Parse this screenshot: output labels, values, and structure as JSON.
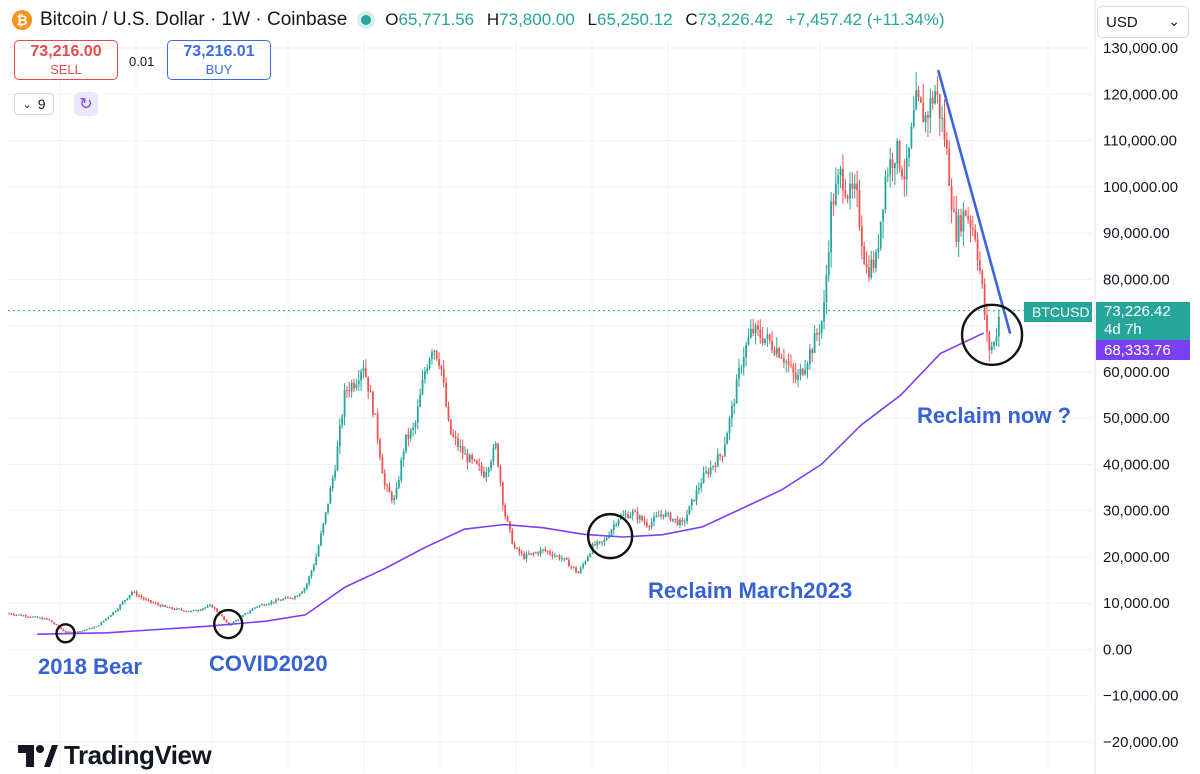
{
  "header": {
    "coin_icon": "bitcoin-icon",
    "coin_glyph": "₿",
    "title": "Bitcoin / U.S. Dollar · 1W · Coinbase",
    "ohlc": {
      "o_label": "O",
      "o_value": "65,771.56",
      "h_label": "H",
      "h_value": "73,800.00",
      "l_label": "L",
      "l_value": "65,250.12",
      "c_label": "C",
      "c_value": "73,226.42",
      "change": "+7,457.42 (+11.34%)"
    }
  },
  "trade": {
    "sell_price": "73,216.00",
    "sell_label": "SELL",
    "spread": "0.01",
    "buy_price": "73,216.01",
    "buy_label": "BUY"
  },
  "toolbar": {
    "interval_value": "9",
    "interval_icon": "chevron-down-icon",
    "refresh_icon": "refresh-icon"
  },
  "currency": {
    "value": "USD",
    "icon": "chevron-down-icon"
  },
  "price_tags": {
    "symbol": "BTCUSD",
    "last_price": "73,226.42",
    "countdown": "4d 7h",
    "ma_value": "68,333.76"
  },
  "colors": {
    "up": "#26a69a",
    "down": "#ef5350",
    "ma": "#7b3ff2",
    "trend": "#3d63dd",
    "annotation": "#3662d6"
  },
  "annotations": [
    {
      "text": "2018 Bear"
    },
    {
      "text": "COVID2020"
    },
    {
      "text": "Reclaim March2023"
    },
    {
      "text": "Reclaim now ?"
    }
  ],
  "branding": {
    "name": "TradingView"
  },
  "chart_data": {
    "type": "candlestick",
    "title": "Bitcoin / U.S. Dollar · 1W · Coinbase",
    "xlabel": "",
    "ylabel": "",
    "ylim": [
      -20000,
      130000
    ],
    "y_ticks": [
      130000,
      120000,
      110000,
      100000,
      90000,
      80000,
      70000,
      60000,
      50000,
      40000,
      30000,
      20000,
      10000,
      0,
      -10000,
      -20000
    ],
    "y_tick_labels": [
      "130,000.00",
      "120,000.00",
      "110,000.00",
      "100,000.00",
      "90,000.00",
      "80,000.00",
      "70,000.00",
      "60,000.00",
      "50,000.00",
      "40,000.00",
      "30,000.00",
      "20,000.00",
      "10,000.00",
      "0.00",
      "−10,000.00",
      "−20,000.00"
    ],
    "grid": true,
    "x_range": [
      0,
      1000
    ],
    "price_path": [
      [
        0,
        7800
      ],
      [
        20,
        7200
      ],
      [
        40,
        6500
      ],
      [
        58,
        3700
      ],
      [
        72,
        3900
      ],
      [
        90,
        5000
      ],
      [
        110,
        8800
      ],
      [
        125,
        12500
      ],
      [
        140,
        10500
      ],
      [
        160,
        9000
      ],
      [
        185,
        8200
      ],
      [
        205,
        9500
      ],
      [
        215,
        7200
      ],
      [
        222,
        5200
      ],
      [
        235,
        7000
      ],
      [
        250,
        9300
      ],
      [
        270,
        10500
      ],
      [
        290,
        11500
      ],
      [
        300,
        13500
      ],
      [
        310,
        19500
      ],
      [
        320,
        29000
      ],
      [
        330,
        40000
      ],
      [
        340,
        56000
      ],
      [
        350,
        58000
      ],
      [
        358,
        62000
      ],
      [
        370,
        50000
      ],
      [
        380,
        35000
      ],
      [
        390,
        32000
      ],
      [
        400,
        45000
      ],
      [
        410,
        48000
      ],
      [
        420,
        60000
      ],
      [
        428,
        66000
      ],
      [
        436,
        62000
      ],
      [
        445,
        47000
      ],
      [
        460,
        42000
      ],
      [
        480,
        38000
      ],
      [
        492,
        44000
      ],
      [
        500,
        30000
      ],
      [
        510,
        22000
      ],
      [
        520,
        20000
      ],
      [
        540,
        21500
      ],
      [
        560,
        19500
      ],
      [
        575,
        16500
      ],
      [
        590,
        22500
      ],
      [
        600,
        23000
      ],
      [
        615,
        28500
      ],
      [
        630,
        29500
      ],
      [
        645,
        27000
      ],
      [
        660,
        29500
      ],
      [
        680,
        27000
      ],
      [
        700,
        37000
      ],
      [
        720,
        42500
      ],
      [
        730,
        52000
      ],
      [
        740,
        63000
      ],
      [
        750,
        69000
      ],
      [
        765,
        67000
      ],
      [
        780,
        64000
      ],
      [
        795,
        58000
      ],
      [
        810,
        65000
      ],
      [
        822,
        72000
      ],
      [
        830,
        96000
      ],
      [
        840,
        103000
      ],
      [
        848,
        98000
      ],
      [
        855,
        98500
      ],
      [
        865,
        82000
      ],
      [
        875,
        84000
      ],
      [
        885,
        103000
      ],
      [
        895,
        108000
      ],
      [
        905,
        102000
      ],
      [
        915,
        118000
      ],
      [
        925,
        115000
      ],
      [
        935,
        121000
      ],
      [
        945,
        110000
      ],
      [
        955,
        90000
      ],
      [
        965,
        95000
      ],
      [
        975,
        90000
      ],
      [
        982,
        78000
      ],
      [
        988,
        65000
      ],
      [
        994,
        66000
      ],
      [
        1000,
        73226
      ]
    ],
    "series": [
      {
        "name": "Moving average",
        "color": "#7b3ff2",
        "points": [
          [
            30,
            3300
          ],
          [
            100,
            3600
          ],
          [
            200,
            5000
          ],
          [
            260,
            6100
          ],
          [
            300,
            7500
          ],
          [
            340,
            13500
          ],
          [
            380,
            17500
          ],
          [
            420,
            22000
          ],
          [
            460,
            26000
          ],
          [
            500,
            27000
          ],
          [
            540,
            26300
          ],
          [
            580,
            24900
          ],
          [
            620,
            24300
          ],
          [
            660,
            24800
          ],
          [
            700,
            26500
          ],
          [
            740,
            30500
          ],
          [
            780,
            34500
          ],
          [
            820,
            40000
          ],
          [
            860,
            48500
          ],
          [
            900,
            55000
          ],
          [
            940,
            64000
          ],
          [
            983,
            68333
          ]
        ]
      },
      {
        "name": "Trendline",
        "color": "#3d63dd",
        "points": [
          [
            938,
            125000
          ],
          [
            1010,
            68500
          ]
        ]
      }
    ],
    "horizontal_line": {
      "value": 73226.42,
      "style": "dotted",
      "color": "#26a69a"
    },
    "markers": [
      {
        "type": "circle",
        "x": 58,
        "y": 3500,
        "label": "2018 Bear"
      },
      {
        "type": "circle",
        "x": 222,
        "y": 5500,
        "label": "COVID2020"
      },
      {
        "type": "circle",
        "x": 607,
        "y": 24500,
        "label": "Reclaim March2023"
      },
      {
        "type": "circle",
        "x": 992,
        "y": 68000,
        "label": "Reclaim now ?"
      }
    ]
  }
}
